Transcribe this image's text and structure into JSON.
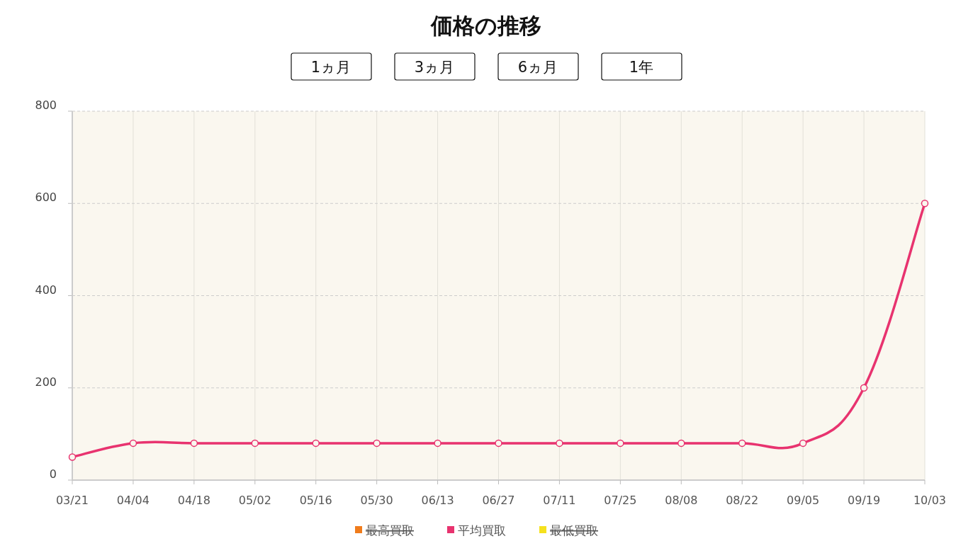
{
  "chart_data": {
    "type": "line",
    "title": "価格の推移",
    "annotations": [
      "1ヵ月",
      "3ヵ月",
      "6ヵ月",
      "1年"
    ],
    "categories": [
      "03/21",
      "04/04",
      "04/18",
      "05/02",
      "05/16",
      "05/30",
      "06/13",
      "06/27",
      "07/11",
      "07/25",
      "08/08",
      "08/22",
      "09/05",
      "09/19",
      "10/03"
    ],
    "series": [
      {
        "name": "最高買取",
        "color": "#f07c1c",
        "values": [
          null,
          null,
          null,
          null,
          null,
          null,
          null,
          null,
          null,
          null,
          null,
          null,
          null,
          null,
          null
        ]
      },
      {
        "name": "平均買取",
        "color": "#e8336f",
        "values": [
          50,
          80,
          80,
          80,
          80,
          80,
          80,
          80,
          80,
          80,
          80,
          80,
          80,
          200,
          600
        ]
      },
      {
        "name": "最低買取",
        "color": "#f5e11e",
        "values": [
          null,
          null,
          null,
          null,
          null,
          null,
          null,
          null,
          null,
          null,
          null,
          null,
          null,
          null,
          null
        ]
      }
    ],
    "ylim": [
      0,
      800
    ],
    "yticks": [
      0,
      200,
      400,
      600,
      800
    ],
    "grid": true,
    "legend": "bottom",
    "marker": "circle",
    "line_style": "solid"
  }
}
